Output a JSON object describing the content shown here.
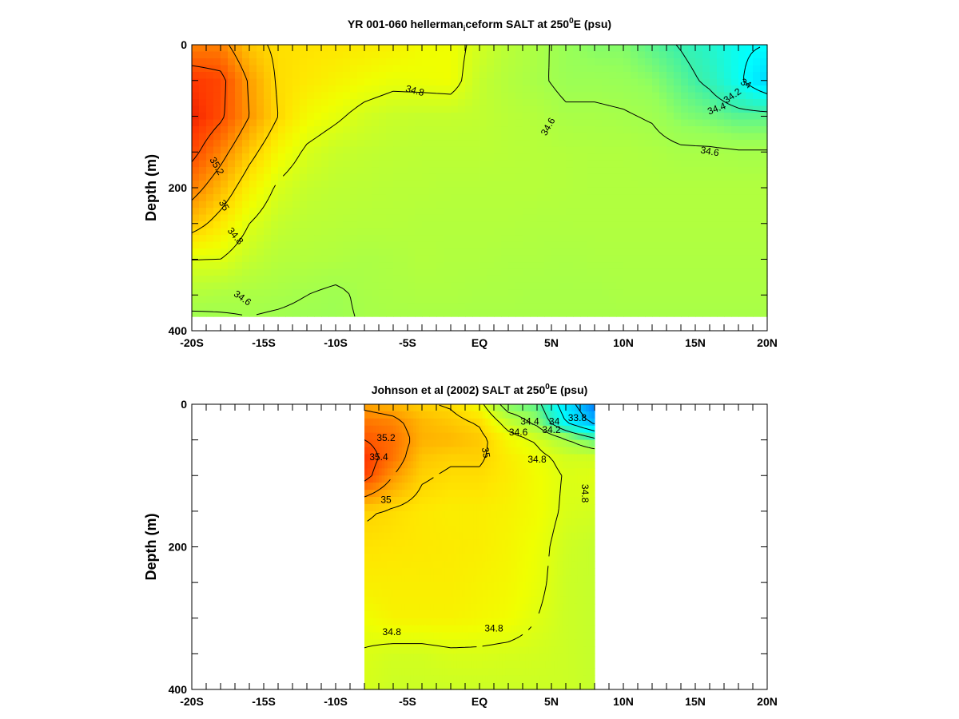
{
  "chart_data": [
    {
      "type": "heatmap",
      "title_parts": [
        "YR 001-060 hellerman",
        "i",
        "ceform SALT at 250",
        "0",
        "E (psu)"
      ],
      "ylabel": "Depth (m)",
      "x_ticks": [
        {
          "value": -20,
          "label": "-20S"
        },
        {
          "value": -15,
          "label": "-15S"
        },
        {
          "value": -10,
          "label": "-10S"
        },
        {
          "value": -5,
          "label": "-5S"
        },
        {
          "value": 0,
          "label": "EQ"
        },
        {
          "value": 5,
          "label": "5N"
        },
        {
          "value": 10,
          "label": "10N"
        },
        {
          "value": 15,
          "label": "15N"
        },
        {
          "value": 20,
          "label": "20N"
        }
      ],
      "y_ticks": [
        {
          "value": 0,
          "label": "0"
        },
        {
          "value": 200,
          "label": "200"
        },
        {
          "value": 400,
          "label": "400"
        }
      ],
      "xlim": [
        -20,
        20
      ],
      "ylim": [
        0,
        400
      ],
      "data_extent": {
        "x": [
          -20,
          20
        ],
        "depth": [
          0,
          380
        ]
      },
      "colorscale": "red-orange-yellow-green-cyan-blue",
      "value_range": [
        33.6,
        35.6
      ],
      "grid": {
        "x": [
          -20,
          -18,
          -16,
          -14,
          -12,
          -10,
          -8,
          -6,
          -4,
          -2,
          0,
          2,
          4,
          6,
          8,
          10,
          12,
          14,
          16,
          18,
          20
        ],
        "depth": [
          0,
          50,
          100,
          150,
          200,
          250,
          300,
          350,
          380
        ],
        "values": [
          [
            35.26,
            35.26,
            35.05,
            34.97,
            34.96,
            34.95,
            34.93,
            34.91,
            34.86,
            34.85,
            34.76,
            34.68,
            34.63,
            34.56,
            34.52,
            34.52,
            34.45,
            34.39,
            34.32,
            34.23,
            34.2
          ],
          [
            35.5,
            35.45,
            35.18,
            34.98,
            34.94,
            34.9,
            34.86,
            34.83,
            34.84,
            34.85,
            34.72,
            34.66,
            34.62,
            34.57,
            34.57,
            34.56,
            34.53,
            34.45,
            34.37,
            34.23,
            34.05
          ],
          [
            35.56,
            35.43,
            35.2,
            35.0,
            34.87,
            34.82,
            34.76,
            34.73,
            34.72,
            34.72,
            34.71,
            34.68,
            34.66,
            34.62,
            34.62,
            34.61,
            34.59,
            34.52,
            34.49,
            34.45,
            34.45
          ],
          [
            35.45,
            35.26,
            35.05,
            34.88,
            34.78,
            34.73,
            34.71,
            34.7,
            34.69,
            34.69,
            34.69,
            34.68,
            34.67,
            34.66,
            34.65,
            34.65,
            34.64,
            34.62,
            34.62,
            34.61,
            34.61
          ],
          [
            35.27,
            35.1,
            34.91,
            34.78,
            34.72,
            34.7,
            34.69,
            34.68,
            34.68,
            34.67,
            34.67,
            34.67,
            34.67,
            34.66,
            34.65,
            34.65,
            34.65,
            34.65,
            34.65,
            34.65,
            34.65
          ],
          [
            35.07,
            34.94,
            34.8,
            34.72,
            34.69,
            34.68,
            34.67,
            34.67,
            34.66,
            34.66,
            34.66,
            34.66,
            34.65,
            34.65,
            34.65,
            34.65,
            34.65,
            34.65,
            34.65,
            34.65,
            34.65
          ],
          [
            34.8,
            34.8,
            34.72,
            34.67,
            34.66,
            34.65,
            34.63,
            34.64,
            34.66,
            34.65,
            34.65,
            34.64,
            34.64,
            34.63,
            34.64,
            34.64,
            34.64,
            34.64,
            34.64,
            34.64,
            34.64
          ],
          [
            34.66,
            34.64,
            34.63,
            34.62,
            34.6,
            34.58,
            34.62,
            34.63,
            34.64,
            34.64,
            34.63,
            34.63,
            34.62,
            34.62,
            34.62,
            34.63,
            34.63,
            34.63,
            34.63,
            34.63,
            34.63
          ],
          [
            34.58,
            34.59,
            34.6,
            34.59,
            34.58,
            34.58,
            34.61,
            34.62,
            34.62,
            34.62,
            34.62,
            34.62,
            34.62,
            34.62,
            34.62,
            34.62,
            34.62,
            34.62,
            34.62,
            34.62,
            34.62
          ]
        ]
      },
      "contour_levels": [
        33.8,
        34.0,
        34.2,
        34.4,
        34.6,
        34.8,
        35.0,
        35.2,
        35.4
      ],
      "contour_labels": [
        {
          "text": "34.8",
          "x": -4.5,
          "depth": 65,
          "angle": 15
        },
        {
          "text": "34.6",
          "x": 4.8,
          "depth": 115,
          "angle": -60
        },
        {
          "text": "34.4",
          "x": 16.5,
          "depth": 90,
          "angle": -20
        },
        {
          "text": "34.2",
          "x": 17.6,
          "depth": 72,
          "angle": -35
        },
        {
          "text": "34",
          "x": 18.5,
          "depth": 55,
          "angle": 30
        },
        {
          "text": "34.6",
          "x": 16.0,
          "depth": 150,
          "angle": 10
        },
        {
          "text": "35.2",
          "x": -18.3,
          "depth": 170,
          "angle": 60
        },
        {
          "text": "35",
          "x": -17.8,
          "depth": 225,
          "angle": 60
        },
        {
          "text": "34.8",
          "x": -17.0,
          "depth": 268,
          "angle": 50
        },
        {
          "text": "34.6",
          "x": -16.5,
          "depth": 355,
          "angle": 35
        }
      ]
    },
    {
      "type": "heatmap",
      "title_parts": [
        "Johnson et al (2002) SALT at 250",
        "0",
        "E (psu)"
      ],
      "ylabel": "Depth (m)",
      "x_ticks": [
        {
          "value": -20,
          "label": "-20S"
        },
        {
          "value": -15,
          "label": "-15S"
        },
        {
          "value": -10,
          "label": "-10S"
        },
        {
          "value": -5,
          "label": "-5S"
        },
        {
          "value": 0,
          "label": "EQ"
        },
        {
          "value": 5,
          "label": "5N"
        },
        {
          "value": 10,
          "label": "10N"
        },
        {
          "value": 15,
          "label": "15N"
        },
        {
          "value": 20,
          "label": "20N"
        }
      ],
      "y_ticks": [
        {
          "value": 0,
          "label": "0"
        },
        {
          "value": 200,
          "label": "200"
        },
        {
          "value": 400,
          "label": "400"
        }
      ],
      "xlim": [
        -20,
        20
      ],
      "ylim": [
        0,
        400
      ],
      "data_extent": {
        "x": [
          -8,
          8
        ],
        "depth": [
          0,
          400
        ]
      },
      "colorscale": "red-orange-yellow-green-cyan-blue",
      "value_range": [
        33.6,
        35.6
      ],
      "grid": {
        "x": [
          -8,
          -6,
          -4,
          -2,
          0,
          2,
          4,
          6,
          8
        ],
        "depth": [
          0,
          25,
          50,
          75,
          100,
          150,
          200,
          250,
          300,
          350,
          400
        ],
        "values": [
          [
            35.15,
            35.1,
            35.02,
            34.98,
            34.85,
            34.5,
            34.45,
            34.1,
            33.8
          ],
          [
            35.3,
            35.25,
            35.1,
            35.05,
            34.98,
            34.72,
            34.55,
            34.2,
            33.95
          ],
          [
            35.4,
            35.32,
            35.12,
            35.1,
            35.05,
            34.88,
            34.78,
            34.62,
            34.45
          ],
          [
            35.5,
            35.3,
            35.06,
            35.02,
            35.02,
            34.92,
            34.84,
            34.76,
            34.75
          ],
          [
            35.47,
            35.2,
            35.02,
            34.98,
            34.98,
            34.93,
            34.86,
            34.79,
            34.8
          ],
          [
            35.02,
            34.98,
            34.94,
            34.92,
            34.92,
            34.9,
            34.86,
            34.78,
            34.76
          ],
          [
            34.96,
            34.95,
            34.94,
            34.93,
            34.92,
            34.89,
            34.84,
            34.75,
            34.72
          ],
          [
            34.92,
            34.92,
            34.92,
            34.92,
            34.9,
            34.88,
            34.83,
            34.74,
            34.72
          ],
          [
            34.85,
            34.9,
            34.9,
            34.9,
            34.88,
            34.86,
            34.8,
            34.74,
            34.72
          ],
          [
            34.79,
            34.76,
            34.76,
            34.78,
            34.78,
            34.77,
            34.76,
            34.74,
            34.72
          ],
          [
            34.77,
            34.74,
            34.74,
            34.74,
            34.74,
            34.74,
            34.74,
            34.74,
            34.72
          ]
        ]
      },
      "contour_levels": [
        33.8,
        34.0,
        34.2,
        34.4,
        34.6,
        34.8,
        35.0,
        35.2,
        35.4
      ],
      "contour_labels": [
        {
          "text": "35.2",
          "x": -6.5,
          "depth": 48,
          "angle": 0
        },
        {
          "text": "35.4",
          "x": -7.0,
          "depth": 75,
          "angle": 0
        },
        {
          "text": "35",
          "x": -6.5,
          "depth": 135,
          "angle": 0
        },
        {
          "text": "35",
          "x": 0.4,
          "depth": 68,
          "angle": 80
        },
        {
          "text": "34.8",
          "x": 4.0,
          "depth": 78,
          "angle": 0
        },
        {
          "text": "34.4",
          "x": 3.5,
          "depth": 25,
          "angle": 0
        },
        {
          "text": "34",
          "x": 5.2,
          "depth": 25,
          "angle": 0
        },
        {
          "text": "33.8",
          "x": 6.8,
          "depth": 20,
          "angle": 0
        },
        {
          "text": "34.6",
          "x": 2.7,
          "depth": 40,
          "angle": 0
        },
        {
          "text": "34.2",
          "x": 5.0,
          "depth": 37,
          "angle": 0
        },
        {
          "text": "34.8",
          "x": 7.3,
          "depth": 125,
          "angle": 90
        },
        {
          "text": "34.8",
          "x": -6.1,
          "depth": 320,
          "angle": 0
        },
        {
          "text": "34.8",
          "x": 1.0,
          "depth": 315,
          "angle": 0
        }
      ]
    }
  ]
}
